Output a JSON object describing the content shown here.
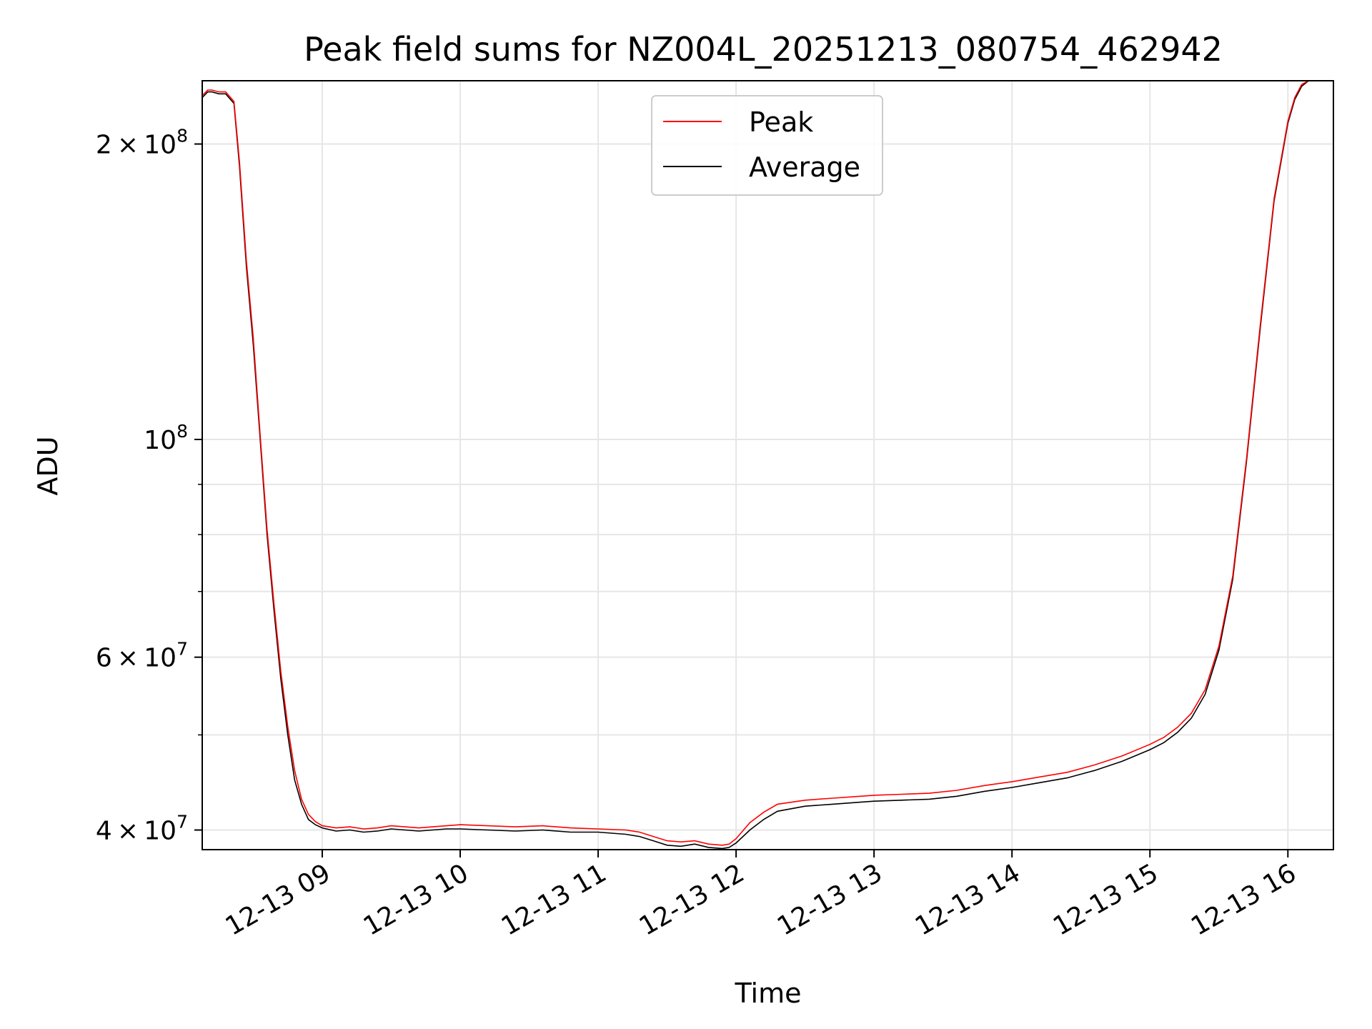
{
  "chart_data": {
    "type": "line",
    "title": "Peak field sums for NZ004L_20251213_080754_462942",
    "xlabel": "Time",
    "ylabel": "ADU",
    "y_scale": "log",
    "ylim": [
      38200000,
      232000000
    ],
    "xlim_hours": [
      8.13,
      16.33
    ],
    "x_ticks": [
      {
        "label": "12-13 09",
        "hour": 9
      },
      {
        "label": "12-13 10",
        "hour": 10
      },
      {
        "label": "12-13 11",
        "hour": 11
      },
      {
        "label": "12-13 12",
        "hour": 12
      },
      {
        "label": "12-13 13",
        "hour": 13
      },
      {
        "label": "12-13 14",
        "hour": 14
      },
      {
        "label": "12-13 15",
        "hour": 15
      },
      {
        "label": "12-13 16",
        "hour": 16
      }
    ],
    "y_ticks": [
      {
        "value": 40000000,
        "base": "4",
        "mult": "×",
        "power": "10",
        "exp": "7"
      },
      {
        "value": 60000000,
        "base": "6",
        "mult": "×",
        "power": "10",
        "exp": "7"
      },
      {
        "value": 100000000,
        "base": "",
        "mult": "",
        "power": "10",
        "exp": "8"
      },
      {
        "value": 200000000,
        "base": "2",
        "mult": "×",
        "power": "10",
        "exp": "8"
      }
    ],
    "y_minor_grid": [
      50000000,
      70000000,
      80000000,
      90000000
    ],
    "legend": {
      "position": "top-center",
      "entries": [
        {
          "label": "Peak",
          "color": "#ff0000"
        },
        {
          "label": "Average",
          "color": "#000000"
        }
      ]
    },
    "series": [
      {
        "name": "Average",
        "color": "#000000",
        "x_hours": [
          8.13,
          8.17,
          8.2,
          8.25,
          8.3,
          8.36,
          8.4,
          8.45,
          8.5,
          8.55,
          8.6,
          8.65,
          8.7,
          8.75,
          8.8,
          8.85,
          8.9,
          8.95,
          9.0,
          9.1,
          9.2,
          9.3,
          9.4,
          9.5,
          9.6,
          9.7,
          9.8,
          9.9,
          10.0,
          10.2,
          10.4,
          10.6,
          10.8,
          11.0,
          11.2,
          11.3,
          11.4,
          11.5,
          11.6,
          11.7,
          11.8,
          11.9,
          11.95,
          12.0,
          12.1,
          12.2,
          12.3,
          12.5,
          12.7,
          12.9,
          13.0,
          13.2,
          13.4,
          13.6,
          13.8,
          14.0,
          14.2,
          14.4,
          14.6,
          14.8,
          15.0,
          15.1,
          15.2,
          15.3,
          15.4,
          15.5,
          15.6,
          15.7,
          15.8,
          15.9,
          16.0,
          16.05,
          16.1,
          16.15,
          16.2,
          16.25,
          16.3,
          16.33
        ],
        "values": [
          223000000,
          226000000,
          226000000,
          225000000,
          225000000,
          220000000,
          190000000,
          150000000,
          125000000,
          100000000,
          80000000,
          67000000,
          57000000,
          50000000,
          45000000,
          42500000,
          41000000,
          40500000,
          40200000,
          39900000,
          40000000,
          39800000,
          39900000,
          40100000,
          40000000,
          39900000,
          40000000,
          40100000,
          40100000,
          40000000,
          39900000,
          40000000,
          39800000,
          39800000,
          39600000,
          39400000,
          39000000,
          38600000,
          38500000,
          38700000,
          38400000,
          38300000,
          38400000,
          38800000,
          40000000,
          41000000,
          41800000,
          42300000,
          42500000,
          42700000,
          42800000,
          42900000,
          43000000,
          43300000,
          43800000,
          44200000,
          44700000,
          45200000,
          46000000,
          47000000,
          48300000,
          49100000,
          50300000,
          52000000,
          55000000,
          61000000,
          72000000,
          95000000,
          130000000,
          175000000,
          210000000,
          222000000,
          229000000,
          232000000,
          232000000,
          232000000,
          232000000,
          232000000
        ]
      },
      {
        "name": "Peak",
        "color": "#ff0000",
        "x_hours": [
          8.13,
          8.17,
          8.2,
          8.25,
          8.3,
          8.36,
          8.4,
          8.45,
          8.5,
          8.55,
          8.6,
          8.65,
          8.7,
          8.75,
          8.8,
          8.85,
          8.9,
          8.95,
          9.0,
          9.1,
          9.2,
          9.3,
          9.4,
          9.5,
          9.6,
          9.7,
          9.8,
          9.9,
          10.0,
          10.2,
          10.4,
          10.6,
          10.8,
          11.0,
          11.2,
          11.3,
          11.4,
          11.5,
          11.6,
          11.7,
          11.8,
          11.9,
          11.95,
          12.0,
          12.1,
          12.2,
          12.3,
          12.5,
          12.7,
          12.9,
          13.0,
          13.2,
          13.4,
          13.6,
          13.8,
          14.0,
          14.2,
          14.4,
          14.6,
          14.8,
          15.0,
          15.1,
          15.2,
          15.3,
          15.4,
          15.5,
          15.6,
          15.7,
          15.8,
          15.9,
          16.0,
          16.05,
          16.1,
          16.15,
          16.2,
          16.25,
          16.3,
          16.33
        ],
        "values": [
          224000000,
          227000000,
          227000000,
          226000000,
          226000000,
          221000000,
          192000000,
          152000000,
          127000000,
          101000000,
          81000000,
          68000000,
          58000000,
          51000000,
          46000000,
          43000000,
          41500000,
          40800000,
          40400000,
          40200000,
          40300000,
          40100000,
          40200000,
          40400000,
          40300000,
          40200000,
          40300000,
          40400000,
          40500000,
          40400000,
          40300000,
          40400000,
          40200000,
          40100000,
          40000000,
          39800000,
          39400000,
          39000000,
          38900000,
          39000000,
          38700000,
          38600000,
          38700000,
          39200000,
          40700000,
          41700000,
          42500000,
          42900000,
          43100000,
          43300000,
          43400000,
          43500000,
          43600000,
          43900000,
          44400000,
          44800000,
          45300000,
          45800000,
          46600000,
          47600000,
          48900000,
          49700000,
          50900000,
          52600000,
          55600000,
          61600000,
          72600000,
          95600000,
          131000000,
          176000000,
          211000000,
          223000000,
          230000000,
          232000000,
          232000000,
          232000000,
          232000000,
          232000000
        ]
      }
    ]
  }
}
